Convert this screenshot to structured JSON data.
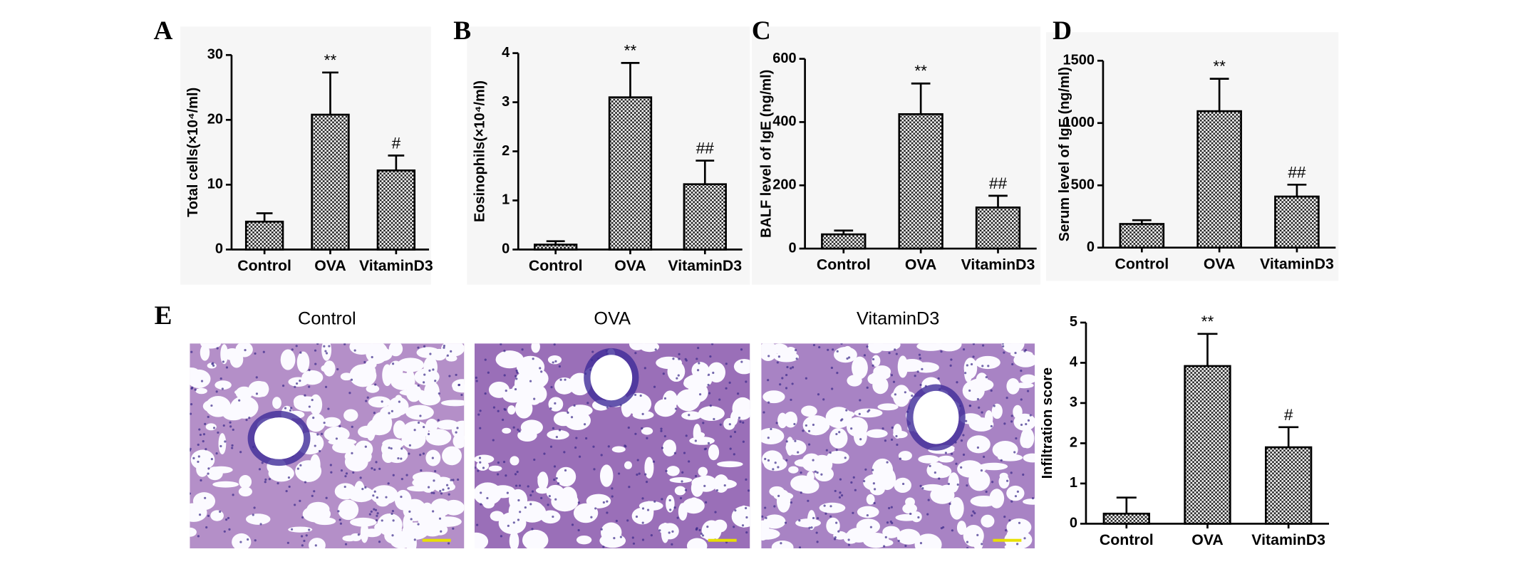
{
  "chart_data": [
    {
      "type": "bar",
      "panel_label": "A",
      "ylabel": "Total cells(×10⁴/ml)",
      "categories": [
        "Control",
        "OVA",
        "VitaminD3"
      ],
      "values": [
        4.3,
        20.8,
        12.2
      ],
      "errors": [
        1.3,
        6.5,
        2.3
      ],
      "annotations": [
        null,
        "**",
        "#"
      ],
      "ylim": [
        0,
        30
      ],
      "yticks": [
        0,
        10,
        20,
        30
      ],
      "color": "#000000"
    },
    {
      "type": "bar",
      "panel_label": "B",
      "ylabel": "Eosinophils(×10⁴/ml)",
      "categories": [
        "Control",
        "OVA",
        "VitaminD3"
      ],
      "values": [
        0.1,
        3.1,
        1.33
      ],
      "errors": [
        0.07,
        0.7,
        0.48
      ],
      "annotations": [
        null,
        "**",
        "##"
      ],
      "ylim": [
        0,
        4
      ],
      "yticks": [
        0,
        1,
        2,
        3,
        4
      ],
      "color": "#000000"
    },
    {
      "type": "bar",
      "panel_label": "C",
      "ylabel": "BALF level of IgE (ng/ml)",
      "categories": [
        "Control",
        "OVA",
        "VitaminD3"
      ],
      "values": [
        45,
        425,
        130
      ],
      "errors": [
        12,
        97,
        37
      ],
      "annotations": [
        null,
        "**",
        "##"
      ],
      "ylim": [
        0,
        600
      ],
      "yticks": [
        0,
        200,
        400,
        600
      ],
      "color": "#000000"
    },
    {
      "type": "bar",
      "panel_label": "D",
      "ylabel": "Serum level of IgE (ng/ml)",
      "categories": [
        "Control",
        "OVA",
        "VitaminD3"
      ],
      "values": [
        190,
        1095,
        410
      ],
      "errors": [
        30,
        260,
        95
      ],
      "annotations": [
        null,
        "**",
        "##"
      ],
      "ylim": [
        0,
        1500
      ],
      "yticks": [
        0,
        500,
        1000,
        1500
      ],
      "color": "#000000"
    },
    {
      "type": "bar",
      "panel_label": "E",
      "ylabel": "Infiltration score",
      "categories": [
        "Control",
        "OVA",
        "VitaminD3"
      ],
      "values": [
        0.25,
        3.92,
        1.9
      ],
      "errors": [
        0.4,
        0.8,
        0.5
      ],
      "annotations": [
        null,
        "**",
        "#"
      ],
      "ylim": [
        0,
        5
      ],
      "yticks": [
        0,
        1,
        2,
        3,
        4,
        5
      ],
      "color": "#000000"
    }
  ],
  "histology": {
    "titles": [
      "Control",
      "OVA",
      "VitaminD3"
    ]
  }
}
